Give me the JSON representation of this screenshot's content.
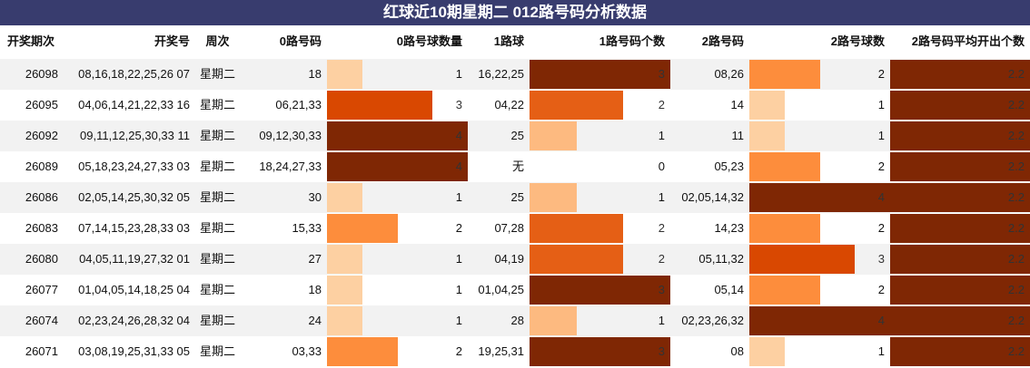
{
  "title": "红球近10期星期二 012路号码分析数据",
  "table": {
    "headers": [
      "开奖期次",
      "开奖号",
      "周次",
      "0路号码",
      "0路号球数量",
      "1路球",
      "1路号码个数",
      "2路号码",
      "2路号球数",
      "2路号码平均开出个数"
    ],
    "bar_columns": [
      4,
      6,
      8,
      9
    ],
    "bar_scale": [
      "#fdd0a2",
      "#fd8d3c",
      "#d94801",
      "#7f2704"
    ],
    "rows": [
      [
        "26098",
        "08,16,18,22,25,26 07",
        "星期二",
        "18",
        1,
        "16,22,25",
        3,
        "08,26",
        2,
        2.2
      ],
      [
        "26095",
        "04,06,14,21,22,33 16",
        "星期二",
        "06,21,33",
        3,
        "04,22",
        2,
        "14",
        1,
        2.2
      ],
      [
        "26092",
        "09,11,12,25,30,33 11",
        "星期二",
        "09,12,30,33",
        4,
        "25",
        1,
        "11",
        1,
        2.2
      ],
      [
        "26089",
        "05,18,23,24,27,33 03",
        "星期二",
        "18,24,27,33",
        4,
        "无",
        0,
        "05,23",
        2,
        2.2
      ],
      [
        "26086",
        "02,05,14,25,30,32 05",
        "星期二",
        "30",
        1,
        "25",
        1,
        "02,05,14,32",
        4,
        2.2
      ],
      [
        "26083",
        "07,14,15,23,28,33 03",
        "星期二",
        "15,33",
        2,
        "07,28",
        2,
        "14,23",
        2,
        2.2
      ],
      [
        "26080",
        "04,05,11,19,27,32 01",
        "星期二",
        "27",
        1,
        "04,19",
        2,
        "05,11,32",
        3,
        2.2
      ],
      [
        "26077",
        "01,04,05,14,18,25 04",
        "星期二",
        "18",
        1,
        "01,04,25",
        3,
        "05,14",
        2,
        2.2
      ],
      [
        "26074",
        "02,23,24,26,28,32 04",
        "星期二",
        "24",
        1,
        "28",
        1,
        "02,23,26,32",
        4,
        2.2
      ],
      [
        "26071",
        "03,08,19,25,31,33 05",
        "星期二",
        "03,33",
        2,
        "19,25,31",
        3,
        "08",
        1,
        2.2
      ]
    ]
  }
}
